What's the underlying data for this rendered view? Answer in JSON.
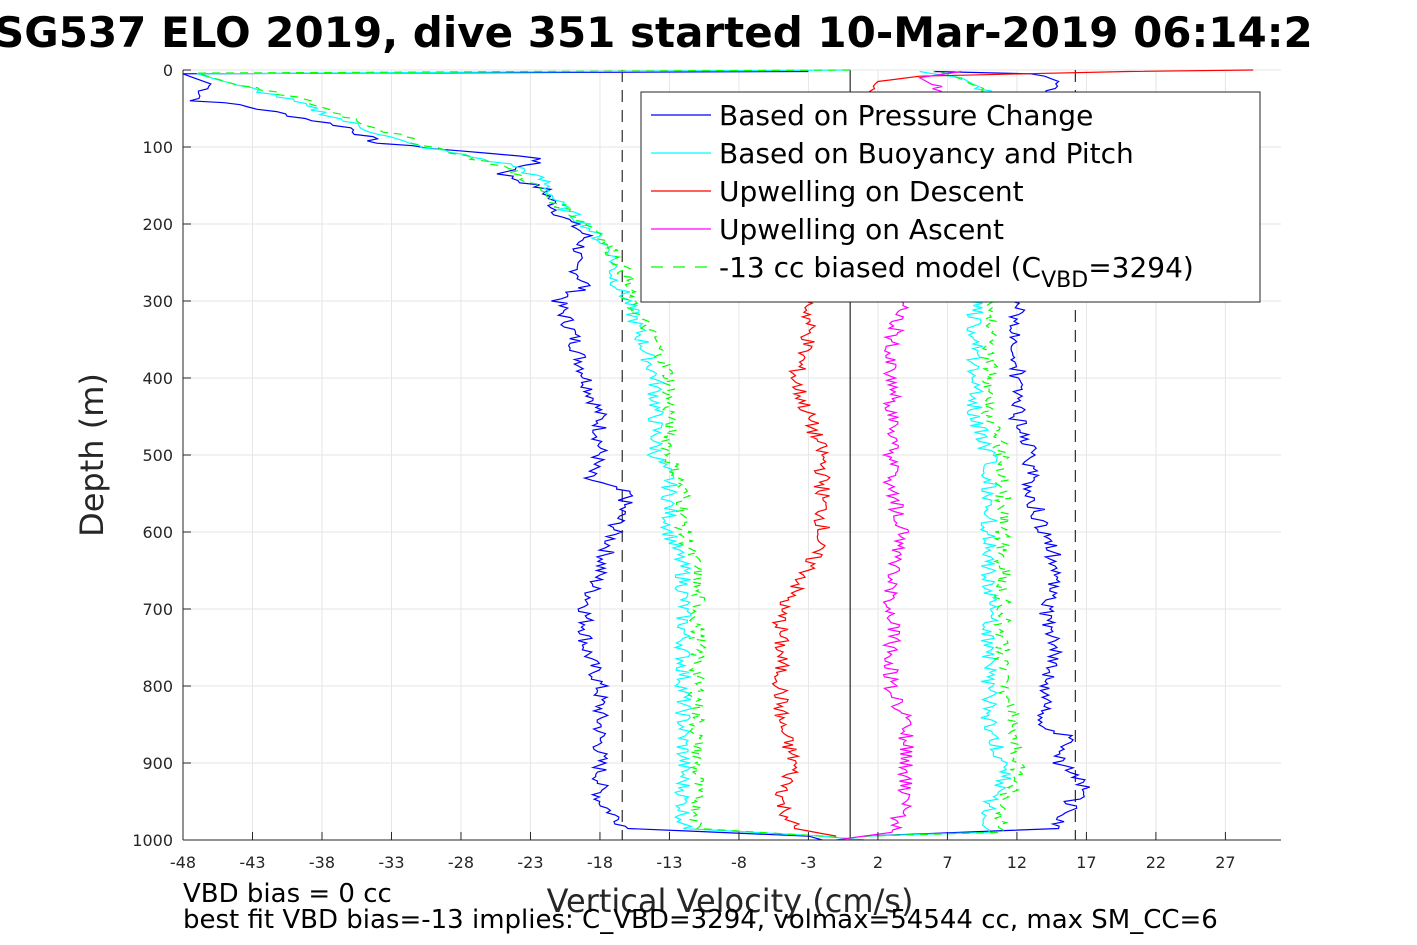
{
  "chart_data": {
    "type": "line",
    "title": "SG537 ELO 2019, dive 351 started 10-Mar-2019 06:14:2",
    "xlabel": "Vertical Velocity (cm/s)",
    "ylabel": "Depth (m)",
    "xlim": [
      -48,
      31
    ],
    "ylim": [
      0,
      1000
    ],
    "y_reversed": true,
    "grid": true,
    "legend_position": "top-right",
    "x_ticks": [
      "-48",
      "-43",
      "-38",
      "-33",
      "-28",
      "-23",
      "-18",
      "-13",
      "-8",
      "-3",
      "2",
      "7",
      "12",
      "17",
      "22",
      "27"
    ],
    "x_tick_values": [
      -48,
      -43,
      -38,
      -33,
      -28,
      -23,
      -18,
      -13,
      -8,
      -3,
      2,
      7,
      12,
      17,
      22,
      27
    ],
    "y_ticks": [
      "0",
      "100",
      "200",
      "300",
      "400",
      "500",
      "600",
      "700",
      "800",
      "900",
      "1000"
    ],
    "y_tick_values": [
      0,
      100,
      200,
      300,
      400,
      500,
      600,
      700,
      800,
      900,
      1000
    ],
    "reference_lines": [
      {
        "x": 0,
        "style": "solid",
        "color": "#000000"
      },
      {
        "x": -16.4,
        "style": "dashed",
        "color": "#000000"
      },
      {
        "x": 16.2,
        "style": "dashed",
        "color": "#000000"
      }
    ],
    "legend": [
      {
        "name": "Based on Pressure Change",
        "color": "#0000ff",
        "style": "solid"
      },
      {
        "name": "Based on Buoyancy and Pitch",
        "color": "#00ffff",
        "style": "solid"
      },
      {
        "name": "Upwelling on Descent",
        "color": "#ff0000",
        "style": "solid"
      },
      {
        "name": "Upwelling on Ascent",
        "color": "#ff00ff",
        "style": "solid"
      },
      {
        "name_prefix": "-13 cc biased model (C",
        "name_sub": "VBD",
        "name_suffix": "=3294)",
        "color": "#00ff00",
        "style": "dashed"
      }
    ],
    "series": [
      {
        "name": "Based on Pressure Change (descent)",
        "color": "#0000ff",
        "points": [
          [
            -3,
            2
          ],
          [
            -48,
            5
          ],
          [
            -46,
            18
          ],
          [
            -47,
            40
          ],
          [
            -44,
            45
          ],
          [
            -40,
            60
          ],
          [
            -36,
            75
          ],
          [
            -34,
            95
          ],
          [
            -28,
            105
          ],
          [
            -22,
            115
          ],
          [
            -25,
            135
          ],
          [
            -22,
            155
          ],
          [
            -21,
            185
          ],
          [
            -19,
            215
          ],
          [
            -20,
            250
          ],
          [
            -19,
            280
          ],
          [
            -21,
            300
          ],
          [
            -20,
            340
          ],
          [
            -19,
            400
          ],
          [
            -18,
            450
          ],
          [
            -18,
            500
          ],
          [
            -19,
            530
          ],
          [
            -16,
            550
          ],
          [
            -17,
            600
          ],
          [
            -18,
            650
          ],
          [
            -19,
            700
          ],
          [
            -19,
            750
          ],
          [
            -18,
            800
          ],
          [
            -18,
            850
          ],
          [
            -18,
            900
          ],
          [
            -18,
            950
          ],
          [
            -16,
            985
          ],
          [
            -3,
            995
          ],
          [
            -2,
            1000
          ]
        ]
      },
      {
        "name": "Based on Pressure Change (ascent)",
        "color": "#0000ff",
        "points": [
          [
            1,
            995
          ],
          [
            15,
            985
          ],
          [
            16,
            950
          ],
          [
            17,
            925
          ],
          [
            15,
            900
          ],
          [
            16,
            870
          ],
          [
            14,
            850
          ],
          [
            14,
            800
          ],
          [
            15,
            750
          ],
          [
            14,
            700
          ],
          [
            15,
            650
          ],
          [
            14,
            600
          ],
          [
            13,
            550
          ],
          [
            13,
            500
          ],
          [
            12,
            450
          ],
          [
            12,
            400
          ],
          [
            12,
            350
          ],
          [
            12,
            300
          ],
          [
            13,
            250
          ],
          [
            13,
            200
          ],
          [
            12,
            150
          ],
          [
            12,
            100
          ],
          [
            13,
            60
          ],
          [
            14,
            30
          ],
          [
            15,
            15
          ],
          [
            14,
            8
          ],
          [
            13,
            5
          ],
          [
            6,
            2
          ]
        ]
      },
      {
        "name": "Based on Buoyancy and Pitch (descent)",
        "color": "#00ffff",
        "points": [
          [
            0,
            0
          ],
          [
            -47,
            5
          ],
          [
            -44,
            20
          ],
          [
            -41,
            35
          ],
          [
            -38,
            55
          ],
          [
            -35,
            75
          ],
          [
            -32,
            95
          ],
          [
            -28,
            110
          ],
          [
            -24,
            125
          ],
          [
            -22,
            145
          ],
          [
            -21,
            175
          ],
          [
            -19,
            200
          ],
          [
            -17,
            240
          ],
          [
            -17,
            270
          ],
          [
            -16,
            300
          ],
          [
            -15,
            350
          ],
          [
            -14,
            400
          ],
          [
            -14,
            450
          ],
          [
            -14,
            500
          ],
          [
            -13,
            530
          ],
          [
            -13,
            560
          ],
          [
            -13,
            600
          ],
          [
            -12,
            650
          ],
          [
            -12,
            700
          ],
          [
            -12,
            750
          ],
          [
            -12,
            800
          ],
          [
            -12,
            850
          ],
          [
            -12,
            900
          ],
          [
            -12,
            950
          ],
          [
            -12,
            985
          ],
          [
            -2,
            995
          ],
          [
            1,
            1000
          ]
        ]
      },
      {
        "name": "Based on Buoyancy and Pitch (ascent)",
        "color": "#00ffff",
        "points": [
          [
            1,
            995
          ],
          [
            10,
            990
          ],
          [
            10,
            950
          ],
          [
            11,
            920
          ],
          [
            11,
            900
          ],
          [
            10,
            850
          ],
          [
            10,
            800
          ],
          [
            10,
            750
          ],
          [
            10,
            700
          ],
          [
            10,
            650
          ],
          [
            10,
            600
          ],
          [
            10,
            550
          ],
          [
            10,
            500
          ],
          [
            9,
            450
          ],
          [
            9,
            400
          ],
          [
            9,
            350
          ],
          [
            9,
            300
          ],
          [
            10,
            250
          ],
          [
            10,
            200
          ],
          [
            10,
            150
          ],
          [
            11,
            100
          ],
          [
            11,
            60
          ],
          [
            10,
            30
          ],
          [
            8,
            10
          ],
          [
            6,
            5
          ],
          [
            5,
            2
          ]
        ]
      },
      {
        "name": "-13 cc biased model (descent)",
        "color": "#00ff00",
        "dashed": true,
        "points": [
          [
            0,
            0
          ],
          [
            -47,
            4
          ],
          [
            -44,
            20
          ],
          [
            -40,
            35
          ],
          [
            -37,
            55
          ],
          [
            -34,
            75
          ],
          [
            -31,
            95
          ],
          [
            -28,
            110
          ],
          [
            -25,
            125
          ],
          [
            -23,
            145
          ],
          [
            -21,
            175
          ],
          [
            -18,
            210
          ],
          [
            -17,
            240
          ],
          [
            -16,
            270
          ],
          [
            -16,
            300
          ],
          [
            -14,
            350
          ],
          [
            -13,
            400
          ],
          [
            -13,
            450
          ],
          [
            -13,
            500
          ],
          [
            -12,
            550
          ],
          [
            -12,
            600
          ],
          [
            -11,
            650
          ],
          [
            -11,
            700
          ],
          [
            -11,
            750
          ],
          [
            -11,
            800
          ],
          [
            -11,
            850
          ],
          [
            -11,
            900
          ],
          [
            -11,
            950
          ],
          [
            -11,
            985
          ],
          [
            -2,
            995
          ],
          [
            1,
            1000
          ]
        ]
      },
      {
        "name": "-13 cc biased model (ascent)",
        "color": "#00ff00",
        "dashed": true,
        "points": [
          [
            1,
            995
          ],
          [
            11,
            990
          ],
          [
            11,
            950
          ],
          [
            12,
            920
          ],
          [
            12,
            900
          ],
          [
            12,
            850
          ],
          [
            11,
            800
          ],
          [
            11,
            750
          ],
          [
            11,
            700
          ],
          [
            11,
            650
          ],
          [
            11,
            600
          ],
          [
            11,
            550
          ],
          [
            11,
            500
          ],
          [
            10,
            450
          ],
          [
            10,
            400
          ],
          [
            10,
            350
          ],
          [
            10,
            300
          ],
          [
            11,
            250
          ],
          [
            11,
            200
          ],
          [
            11,
            150
          ],
          [
            11,
            100
          ],
          [
            11,
            60
          ],
          [
            10,
            30
          ],
          [
            8,
            12
          ],
          [
            7,
            5
          ],
          [
            6,
            2
          ]
        ]
      },
      {
        "name": "Upwelling on Descent",
        "color": "#ff0000",
        "points": [
          [
            29,
            0
          ],
          [
            20,
            2
          ],
          [
            5,
            8
          ],
          [
            2,
            15
          ],
          [
            1,
            30
          ],
          [
            0,
            80
          ],
          [
            -1,
            200
          ],
          [
            -3,
            300
          ],
          [
            -3,
            350
          ],
          [
            -4,
            400
          ],
          [
            -3,
            450
          ],
          [
            -2,
            500
          ],
          [
            -2,
            550
          ],
          [
            -2,
            600
          ],
          [
            -3,
            650
          ],
          [
            -5,
            700
          ],
          [
            -5,
            750
          ],
          [
            -5,
            800
          ],
          [
            -5,
            850
          ],
          [
            -4,
            900
          ],
          [
            -5,
            950
          ],
          [
            -4,
            985
          ],
          [
            -1,
            995
          ]
        ]
      },
      {
        "name": "Upwelling on Ascent",
        "color": "#ff00ff",
        "points": [
          [
            -1,
            1000
          ],
          [
            3,
            990
          ],
          [
            4,
            950
          ],
          [
            4,
            900
          ],
          [
            4,
            850
          ],
          [
            3,
            800
          ],
          [
            3,
            750
          ],
          [
            3,
            700
          ],
          [
            3,
            650
          ],
          [
            4,
            600
          ],
          [
            3,
            550
          ],
          [
            3,
            500
          ],
          [
            3,
            460
          ],
          [
            3,
            400
          ],
          [
            3,
            350
          ],
          [
            4,
            300
          ],
          [
            6,
            250
          ],
          [
            6,
            200
          ],
          [
            6,
            150
          ],
          [
            6,
            100
          ],
          [
            6,
            60
          ],
          [
            7,
            30
          ],
          [
            5,
            10
          ],
          [
            8,
            2
          ]
        ]
      }
    ],
    "footer": [
      "VBD bias = 0 cc",
      "best fit VBD bias=-13 implies: C_VBD=3294, volmax=54544 cc, max SM_CC=6"
    ]
  }
}
